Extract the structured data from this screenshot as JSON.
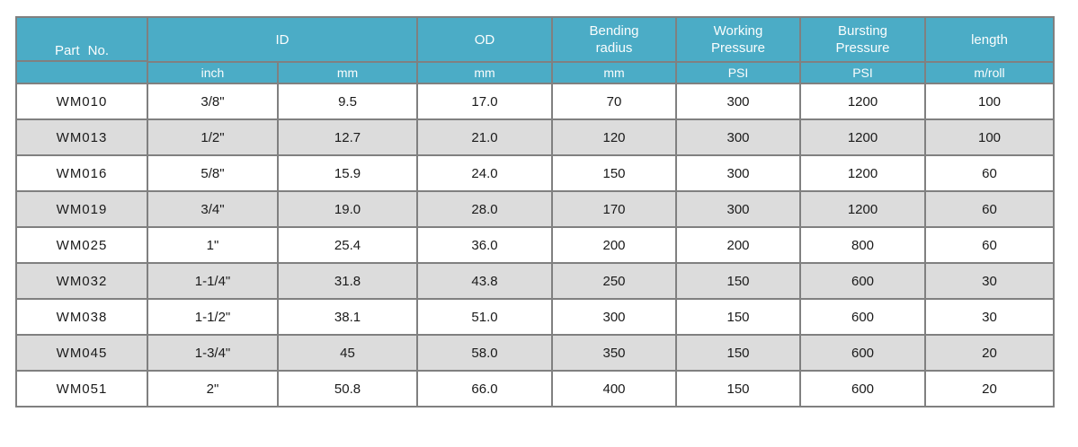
{
  "colors": {
    "header_bg": "#4BACC6",
    "header_text": "#FAFDFD",
    "row_alt_bg": "#DCDCDC",
    "row_bg": "#FFFFFF",
    "border": "#808080",
    "body_text": "#1A1A1A",
    "page_bg": "#FFFFFF"
  },
  "table": {
    "header": {
      "part_no": "Part No.",
      "id": "ID",
      "od": "OD",
      "bending_radius": "Bending\nradius",
      "working_pressure": "Working\nPressure",
      "bursting_pressure": "Bursting\nPressure",
      "length": "length",
      "units": [
        "inch",
        "mm",
        "mm",
        "mm",
        "PSI",
        "PSI",
        "m/roll"
      ]
    },
    "columns": [
      "part_no",
      "id_inch",
      "id_mm",
      "od_mm",
      "bending_radius_mm",
      "working_pressure_psi",
      "bursting_pressure_psi",
      "length_m_roll"
    ],
    "rows": [
      [
        "WM010",
        "3/8\"",
        "9.5",
        "17.0",
        "70",
        "300",
        "1200",
        "100"
      ],
      [
        "WM013",
        "1/2\"",
        "12.7",
        "21.0",
        "120",
        "300",
        "1200",
        "100"
      ],
      [
        "WM016",
        "5/8\"",
        "15.9",
        "24.0",
        "150",
        "300",
        "1200",
        "60"
      ],
      [
        "WM019",
        "3/4\"",
        "19.0",
        "28.0",
        "170",
        "300",
        "1200",
        "60"
      ],
      [
        "WM025",
        "1\"",
        "25.4",
        "36.0",
        "200",
        "200",
        "800",
        "60"
      ],
      [
        "WM032",
        "1-1/4\"",
        "31.8",
        "43.8",
        "250",
        "150",
        "600",
        "30"
      ],
      [
        "WM038",
        "1-1/2\"",
        "38.1",
        "51.0",
        "300",
        "150",
        "600",
        "30"
      ],
      [
        "WM045",
        "1-3/4\"",
        "45",
        "58.0",
        "350",
        "150",
        "600",
        "20"
      ],
      [
        "WM051",
        "2\"",
        "50.8",
        "66.0",
        "400",
        "150",
        "600",
        "20"
      ]
    ]
  }
}
